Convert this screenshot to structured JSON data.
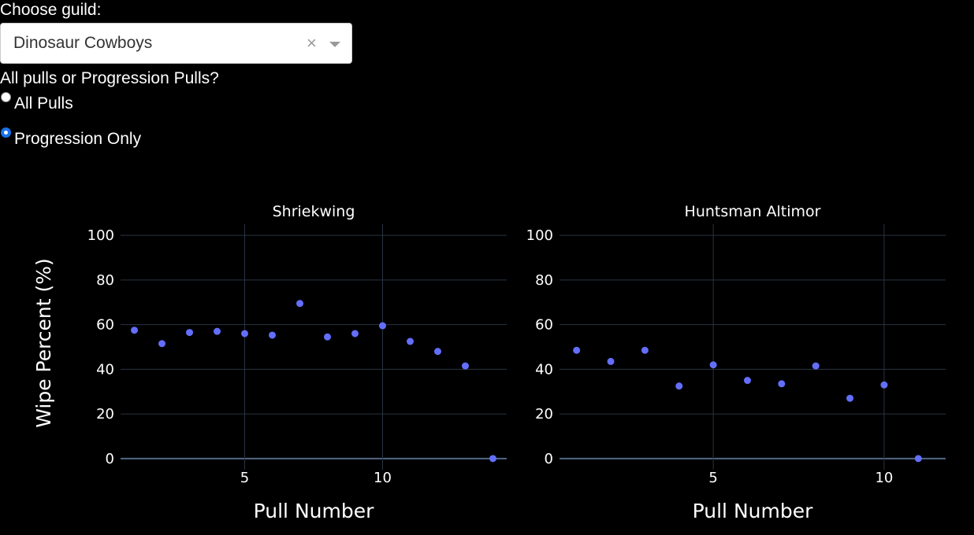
{
  "controls": {
    "guild_label": "Choose guild:",
    "guild_value": "Dinosaur Cowboys",
    "clear_glyph": "×",
    "mode_label": "All pulls or Progression Pulls?",
    "options": [
      {
        "label": "All Pulls",
        "selected": false
      },
      {
        "label": "Progression Only",
        "selected": true
      }
    ]
  },
  "colors": {
    "background": "#000000",
    "marker": "#636efa",
    "grid": "#283442",
    "zeroline": "#506784"
  },
  "chart_data": [
    {
      "type": "scatter",
      "title": "Shriekwing",
      "xlabel": "Pull Number",
      "ylabel": "Wipe Percent (%)",
      "xlim": [
        0.5,
        14.5
      ],
      "ylim": [
        -5,
        105
      ],
      "xticks": [
        5,
        10
      ],
      "yticks": [
        0,
        20,
        40,
        60,
        80,
        100
      ],
      "grid": true,
      "x": [
        1,
        2,
        3,
        4,
        5,
        6,
        7,
        8,
        9,
        10,
        11,
        12,
        13,
        14
      ],
      "y": [
        57.5,
        51.5,
        56.5,
        57,
        56,
        55.3,
        69.5,
        54.5,
        56,
        59.5,
        52.5,
        48,
        41.5,
        0
      ]
    },
    {
      "type": "scatter",
      "title": "Huntsman Altimor",
      "xlabel": "Pull Number",
      "ylabel": "",
      "xlim": [
        0.5,
        11.8
      ],
      "ylim": [
        -5,
        105
      ],
      "xticks": [
        5,
        10
      ],
      "yticks": [
        0,
        20,
        40,
        60,
        80,
        100
      ],
      "grid": true,
      "x": [
        1,
        2,
        3,
        4,
        5,
        6,
        7,
        8,
        9,
        10,
        11
      ],
      "y": [
        48.5,
        43.5,
        48.5,
        32.5,
        42,
        35,
        33.5,
        41.5,
        27,
        33,
        0
      ]
    }
  ]
}
